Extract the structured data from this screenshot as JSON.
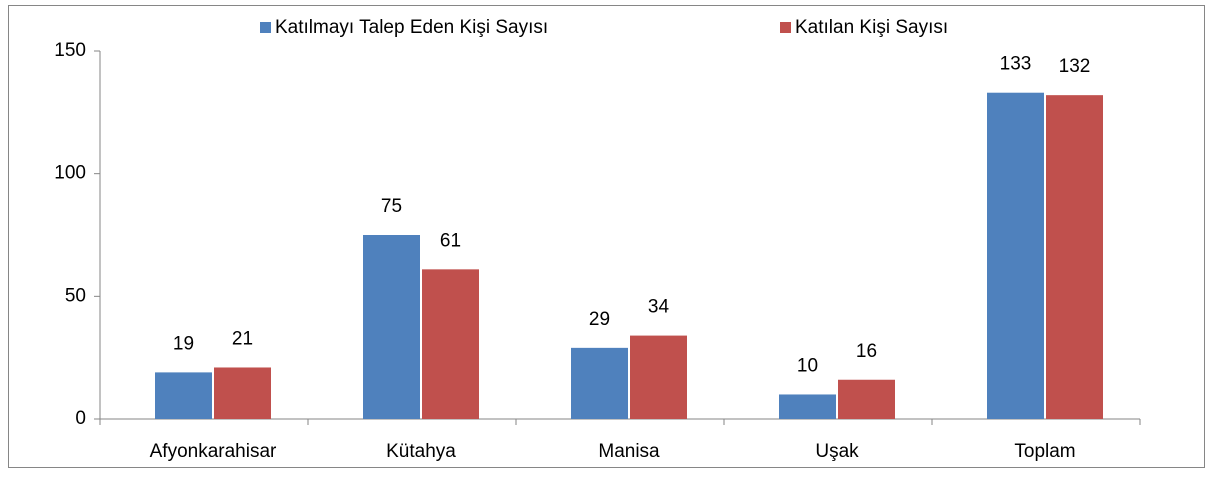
{
  "chart_data": {
    "type": "bar",
    "categories": [
      "Afyonkarahisar",
      "Kütahya",
      "Manisa",
      "Uşak",
      "Toplam"
    ],
    "series": [
      {
        "name": "Katılmayı Talep Eden Kişi Sayısı",
        "color": "#4f81bd",
        "values": [
          19,
          75,
          29,
          10,
          133
        ]
      },
      {
        "name": "Katılan Kişi Sayısı",
        "color": "#c0504d",
        "values": [
          21,
          61,
          34,
          16,
          132
        ]
      }
    ],
    "ylim": [
      0,
      150
    ],
    "yticks": [
      0,
      50,
      100,
      150
    ],
    "grid": false,
    "legend": "top"
  }
}
